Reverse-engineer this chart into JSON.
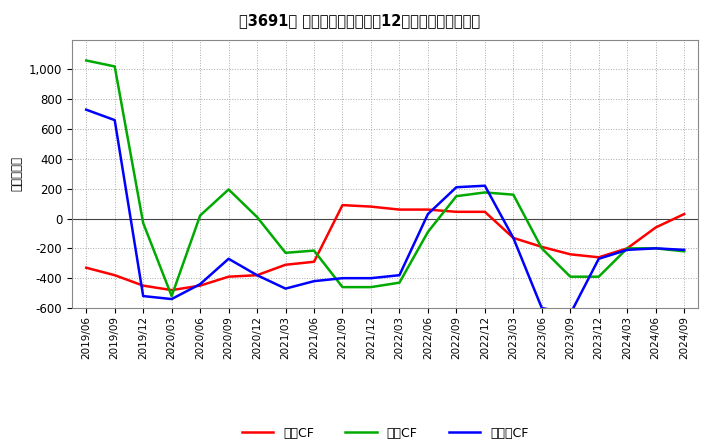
{
  "title": "［3691］ キャッシュフローの12か月移動合計の推移",
  "ylabel": "（百万円）",
  "ylim": [
    -600,
    1200
  ],
  "yticks": [
    -600,
    -400,
    -200,
    0,
    200,
    400,
    600,
    800,
    1000
  ],
  "background_color": "#ffffff",
  "plot_bg_color": "#ffffff",
  "grid_color": "#aaaaaa",
  "dates": [
    "2019/06",
    "2019/09",
    "2019/12",
    "2020/03",
    "2020/06",
    "2020/09",
    "2020/12",
    "2021/03",
    "2021/06",
    "2021/09",
    "2021/12",
    "2022/03",
    "2022/06",
    "2022/09",
    "2022/12",
    "2023/03",
    "2023/06",
    "2023/09",
    "2023/12",
    "2024/03",
    "2024/06",
    "2024/09"
  ],
  "operating_cf": [
    -330,
    -380,
    -450,
    -480,
    -450,
    -390,
    -380,
    -310,
    -290,
    90,
    80,
    60,
    60,
    45,
    45,
    -130,
    -190,
    -240,
    -260,
    -200,
    -60,
    30
  ],
  "investing_cf": [
    1060,
    1020,
    -30,
    -520,
    20,
    195,
    10,
    -230,
    -215,
    -460,
    -460,
    -430,
    -90,
    150,
    175,
    160,
    -200,
    -390,
    -390,
    -200,
    -200,
    -220
  ],
  "free_cf": [
    730,
    660,
    -520,
    -540,
    -440,
    -270,
    -380,
    -470,
    -420,
    -400,
    -400,
    -380,
    30,
    210,
    220,
    -130,
    -600,
    -640,
    -270,
    -210,
    -200,
    -210
  ],
  "operating_color": "#ff0000",
  "investing_color": "#00aa00",
  "free_color": "#0000ff",
  "line_width": 1.8,
  "legend_labels": [
    "営業CF",
    "投資CF",
    "フリーCF"
  ]
}
